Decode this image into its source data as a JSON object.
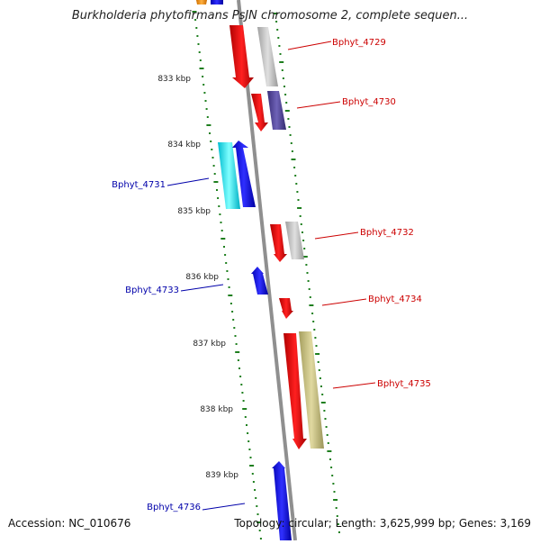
{
  "title": "Burkholderia phytofirmans PsJN chromosome 2, complete sequen...",
  "footer": {
    "accession": "Accession: NC_010676",
    "topology": "Topology: circular; Length: 3,625,999 bp; Genes: 3,169"
  },
  "colors": {
    "backbone": "#8f8f8f",
    "gc_skew_dots": "#1f7f1f",
    "label_forward": "#cc0000",
    "label_reverse": "#0000aa"
  },
  "ticks": [
    {
      "label": "833 kbp"
    },
    {
      "label": "834 kbp"
    },
    {
      "label": "835 kbp"
    },
    {
      "label": "836 kbp"
    },
    {
      "label": "837 kbp"
    },
    {
      "label": "838 kbp"
    },
    {
      "label": "839 kbp"
    }
  ],
  "gene_labels": [
    {
      "text": "Bphyt_4729",
      "strand": "forward"
    },
    {
      "text": "Bphyt_4730",
      "strand": "forward"
    },
    {
      "text": "Bphyt_4731",
      "strand": "reverse"
    },
    {
      "text": "Bphyt_4732",
      "strand": "forward"
    },
    {
      "text": "Bphyt_4733",
      "strand": "reverse"
    },
    {
      "text": "Bphyt_4734",
      "strand": "forward"
    },
    {
      "text": "Bphyt_4735",
      "strand": "forward"
    },
    {
      "text": "Bphyt_4736",
      "strand": "reverse"
    }
  ]
}
